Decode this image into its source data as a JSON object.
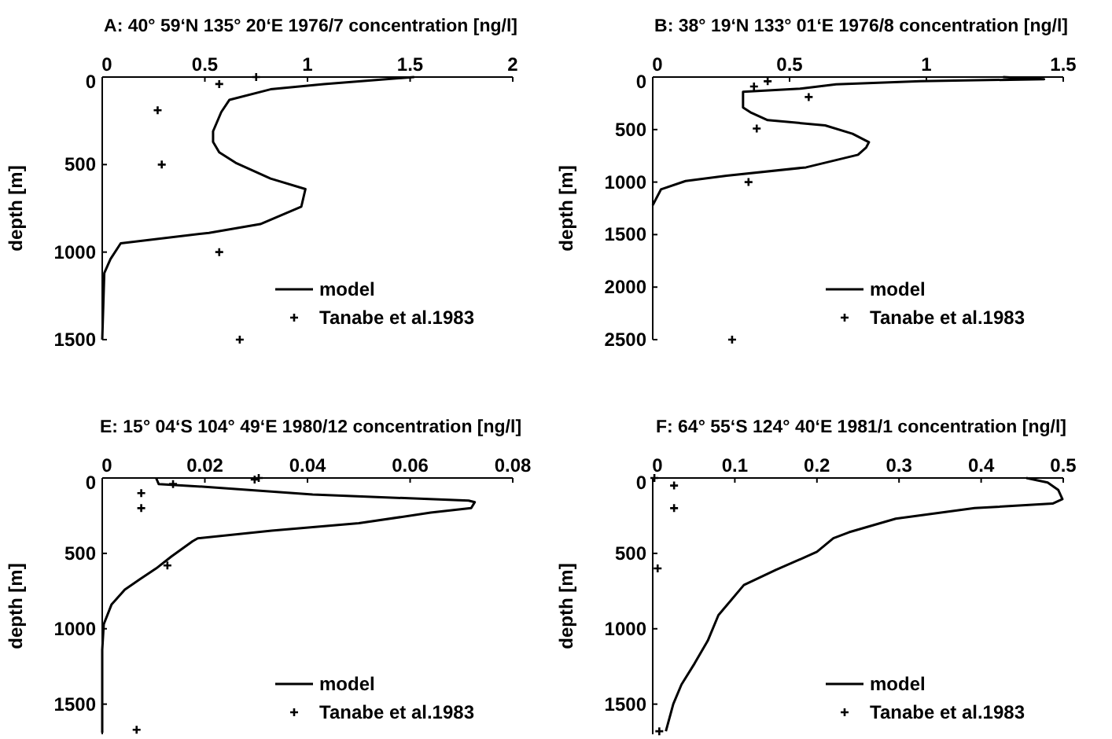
{
  "chart_data": [
    {
      "type": "line",
      "title": "A: 40° 59‘N 135° 20‘E 1976/7 concentration [ng/l]",
      "ylabel": "depth [m]",
      "xlim": [
        0,
        2
      ],
      "xticks": [
        0,
        0.5,
        1,
        1.5,
        2
      ],
      "ylim": [
        1500,
        0
      ],
      "yticks": [
        0,
        500,
        1000,
        1500
      ],
      "legend": "bottom right",
      "grid": false,
      "series": [
        {
          "name": "model",
          "type": "line",
          "color": "#000000",
          "x": [
            1.52,
            1.08,
            0.82,
            0.62,
            0.58,
            0.54,
            0.54,
            0.57,
            0.65,
            0.82,
            0.99,
            0.97,
            0.77,
            0.52,
            0.09,
            0.04,
            0.01,
            0
          ],
          "values": [
            0,
            40,
            70,
            130,
            200,
            310,
            370,
            430,
            490,
            580,
            640,
            740,
            840,
            890,
            950,
            1040,
            1120,
            1500
          ]
        },
        {
          "name": "Tanabe et al.1983",
          "type": "scatter",
          "marker": "cross",
          "color": "#000000",
          "x": [
            0.75,
            0.57,
            0.27,
            0.29,
            0.57,
            0.67
          ],
          "values": [
            0,
            40,
            190,
            500,
            1000,
            1500
          ]
        }
      ]
    },
    {
      "type": "line",
      "title": "B: 38° 19‘N 133° 01‘E 1976/8 concentration [ng/l]",
      "ylabel": "depth [m]",
      "xlim": [
        0,
        1.5
      ],
      "xticks": [
        0,
        0.5,
        1,
        1.5
      ],
      "ylim": [
        2500,
        0
      ],
      "yticks": [
        0,
        500,
        1000,
        1500,
        2000,
        2500
      ],
      "legend": "bottom right",
      "grid": false,
      "series": [
        {
          "name": "model",
          "type": "line",
          "color": "#000000",
          "x": [
            1.28,
            1.43,
            0.98,
            0.67,
            0.54,
            0.33,
            0.33,
            0.36,
            0.42,
            0.63,
            0.73,
            0.79,
            0.78,
            0.75,
            0.56,
            0.27,
            0.12,
            0.03,
            0
          ],
          "values": [
            0,
            20,
            40,
            70,
            110,
            140,
            290,
            340,
            410,
            460,
            540,
            620,
            670,
            740,
            860,
            940,
            990,
            1070,
            1220
          ]
        },
        {
          "name": "Tanabe et al.1983",
          "type": "scatter",
          "marker": "cross",
          "color": "#000000",
          "x": [
            0.42,
            0.37,
            0.57,
            0.38,
            0.35,
            0.29
          ],
          "values": [
            40,
            90,
            190,
            490,
            1000,
            2500
          ]
        }
      ]
    },
    {
      "type": "line",
      "title": "E: 15° 04‘S 104° 49‘E 1980/12 concentration [ng/l]",
      "ylabel": "depth [m]",
      "xlim": [
        0,
        0.08
      ],
      "xticks": [
        0,
        0.02,
        0.04,
        0.06,
        0.08
      ],
      "ylim": [
        1700,
        0
      ],
      "yticks": [
        0,
        500,
        1000,
        1500
      ],
      "legend": "bottom right",
      "grid": false,
      "series": [
        {
          "name": "model",
          "type": "line",
          "color": "#000000",
          "x": [
            0.0105,
            0.011,
            0.0206,
            0.041,
            0.0714,
            0.0726,
            0.0719,
            0.064,
            0.05,
            0.033,
            0.0186,
            0.0176,
            0.0135,
            0.0105,
            0.0074,
            0.0044,
            0.0018,
            0.0003,
            0,
            0
          ],
          "values": [
            0,
            40,
            60,
            110,
            150,
            160,
            200,
            230,
            300,
            350,
            400,
            420,
            520,
            600,
            670,
            740,
            840,
            970,
            1140,
            1690
          ]
        },
        {
          "name": "Tanabe et al.1983",
          "type": "scatter",
          "marker": "cross",
          "color": "#000000",
          "x": [
            0.0305,
            0.0297,
            0.0138,
            0.0076,
            0.0076,
            0.0127,
            0.0067
          ],
          "values": [
            0,
            10,
            40,
            100,
            200,
            580,
            1670
          ]
        }
      ]
    },
    {
      "type": "line",
      "title": "F: 64° 55‘S 124° 40‘E 1981/1 concentration [ng/l]",
      "ylabel": "depth [m]",
      "xlim": [
        0,
        0.5
      ],
      "xticks": [
        0,
        0.1,
        0.2,
        0.3,
        0.4,
        0.5
      ],
      "ylim": [
        1700,
        0
      ],
      "yticks": [
        0,
        500,
        1000,
        1500
      ],
      "legend": "bottom right",
      "grid": false,
      "series": [
        {
          "name": "model",
          "type": "line",
          "color": "#000000",
          "x": [
            0.455,
            0.481,
            0.494,
            0.499,
            0.487,
            0.392,
            0.296,
            0.239,
            0.22,
            0.2,
            0.15,
            0.111,
            0.08,
            0.067,
            0.051,
            0.035,
            0.025,
            0.016
          ],
          "values": [
            0,
            30,
            80,
            140,
            170,
            200,
            270,
            360,
            400,
            490,
            610,
            710,
            910,
            1080,
            1230,
            1370,
            1500,
            1680
          ]
        },
        {
          "name": "Tanabe et al.1983",
          "type": "scatter",
          "marker": "cross",
          "color": "#000000",
          "x": [
            0.002,
            0.026,
            0.026,
            0.006,
            0.008
          ],
          "values": [
            0,
            50,
            200,
            600,
            1680
          ]
        }
      ]
    }
  ]
}
